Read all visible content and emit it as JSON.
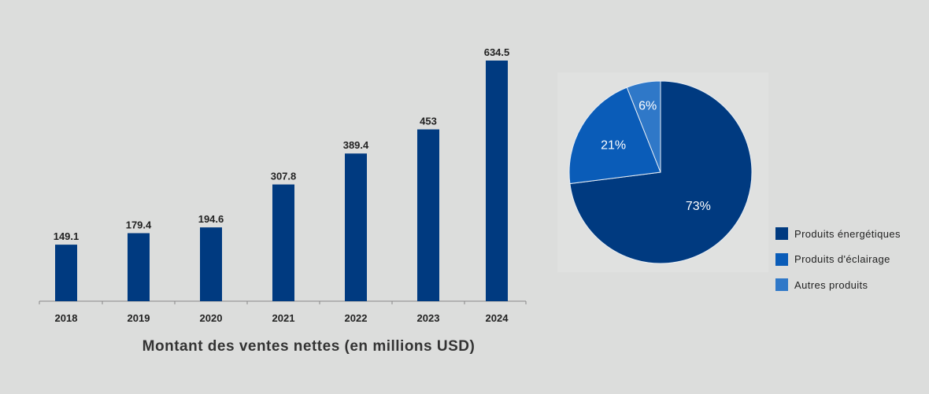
{
  "chart_data": [
    {
      "type": "bar",
      "categories": [
        "2018",
        "2019",
        "2020",
        "2021",
        "2022",
        "2023",
        "2024"
      ],
      "values": [
        149.1,
        179.4,
        194.6,
        307.8,
        389.4,
        453,
        634.5
      ],
      "value_labels": [
        "149.1",
        "179.4",
        "194.6",
        "307.8",
        "389.4",
        "453",
        "634.5"
      ],
      "xlabel": "Montant des ventes nettes (en millions USD)",
      "ylim": [
        0,
        634.5
      ],
      "grid": false,
      "color": "#003a80"
    },
    {
      "type": "pie",
      "labels": [
        "Produits énergétiques",
        "Produits d'éclairage",
        "Autres produits"
      ],
      "values": [
        73,
        21,
        6
      ],
      "value_labels": [
        "73%",
        "21%",
        "6%"
      ],
      "colors": [
        "#003a80",
        "#0a5cb8",
        "#2f78c8"
      ],
      "legend": "right"
    }
  ]
}
